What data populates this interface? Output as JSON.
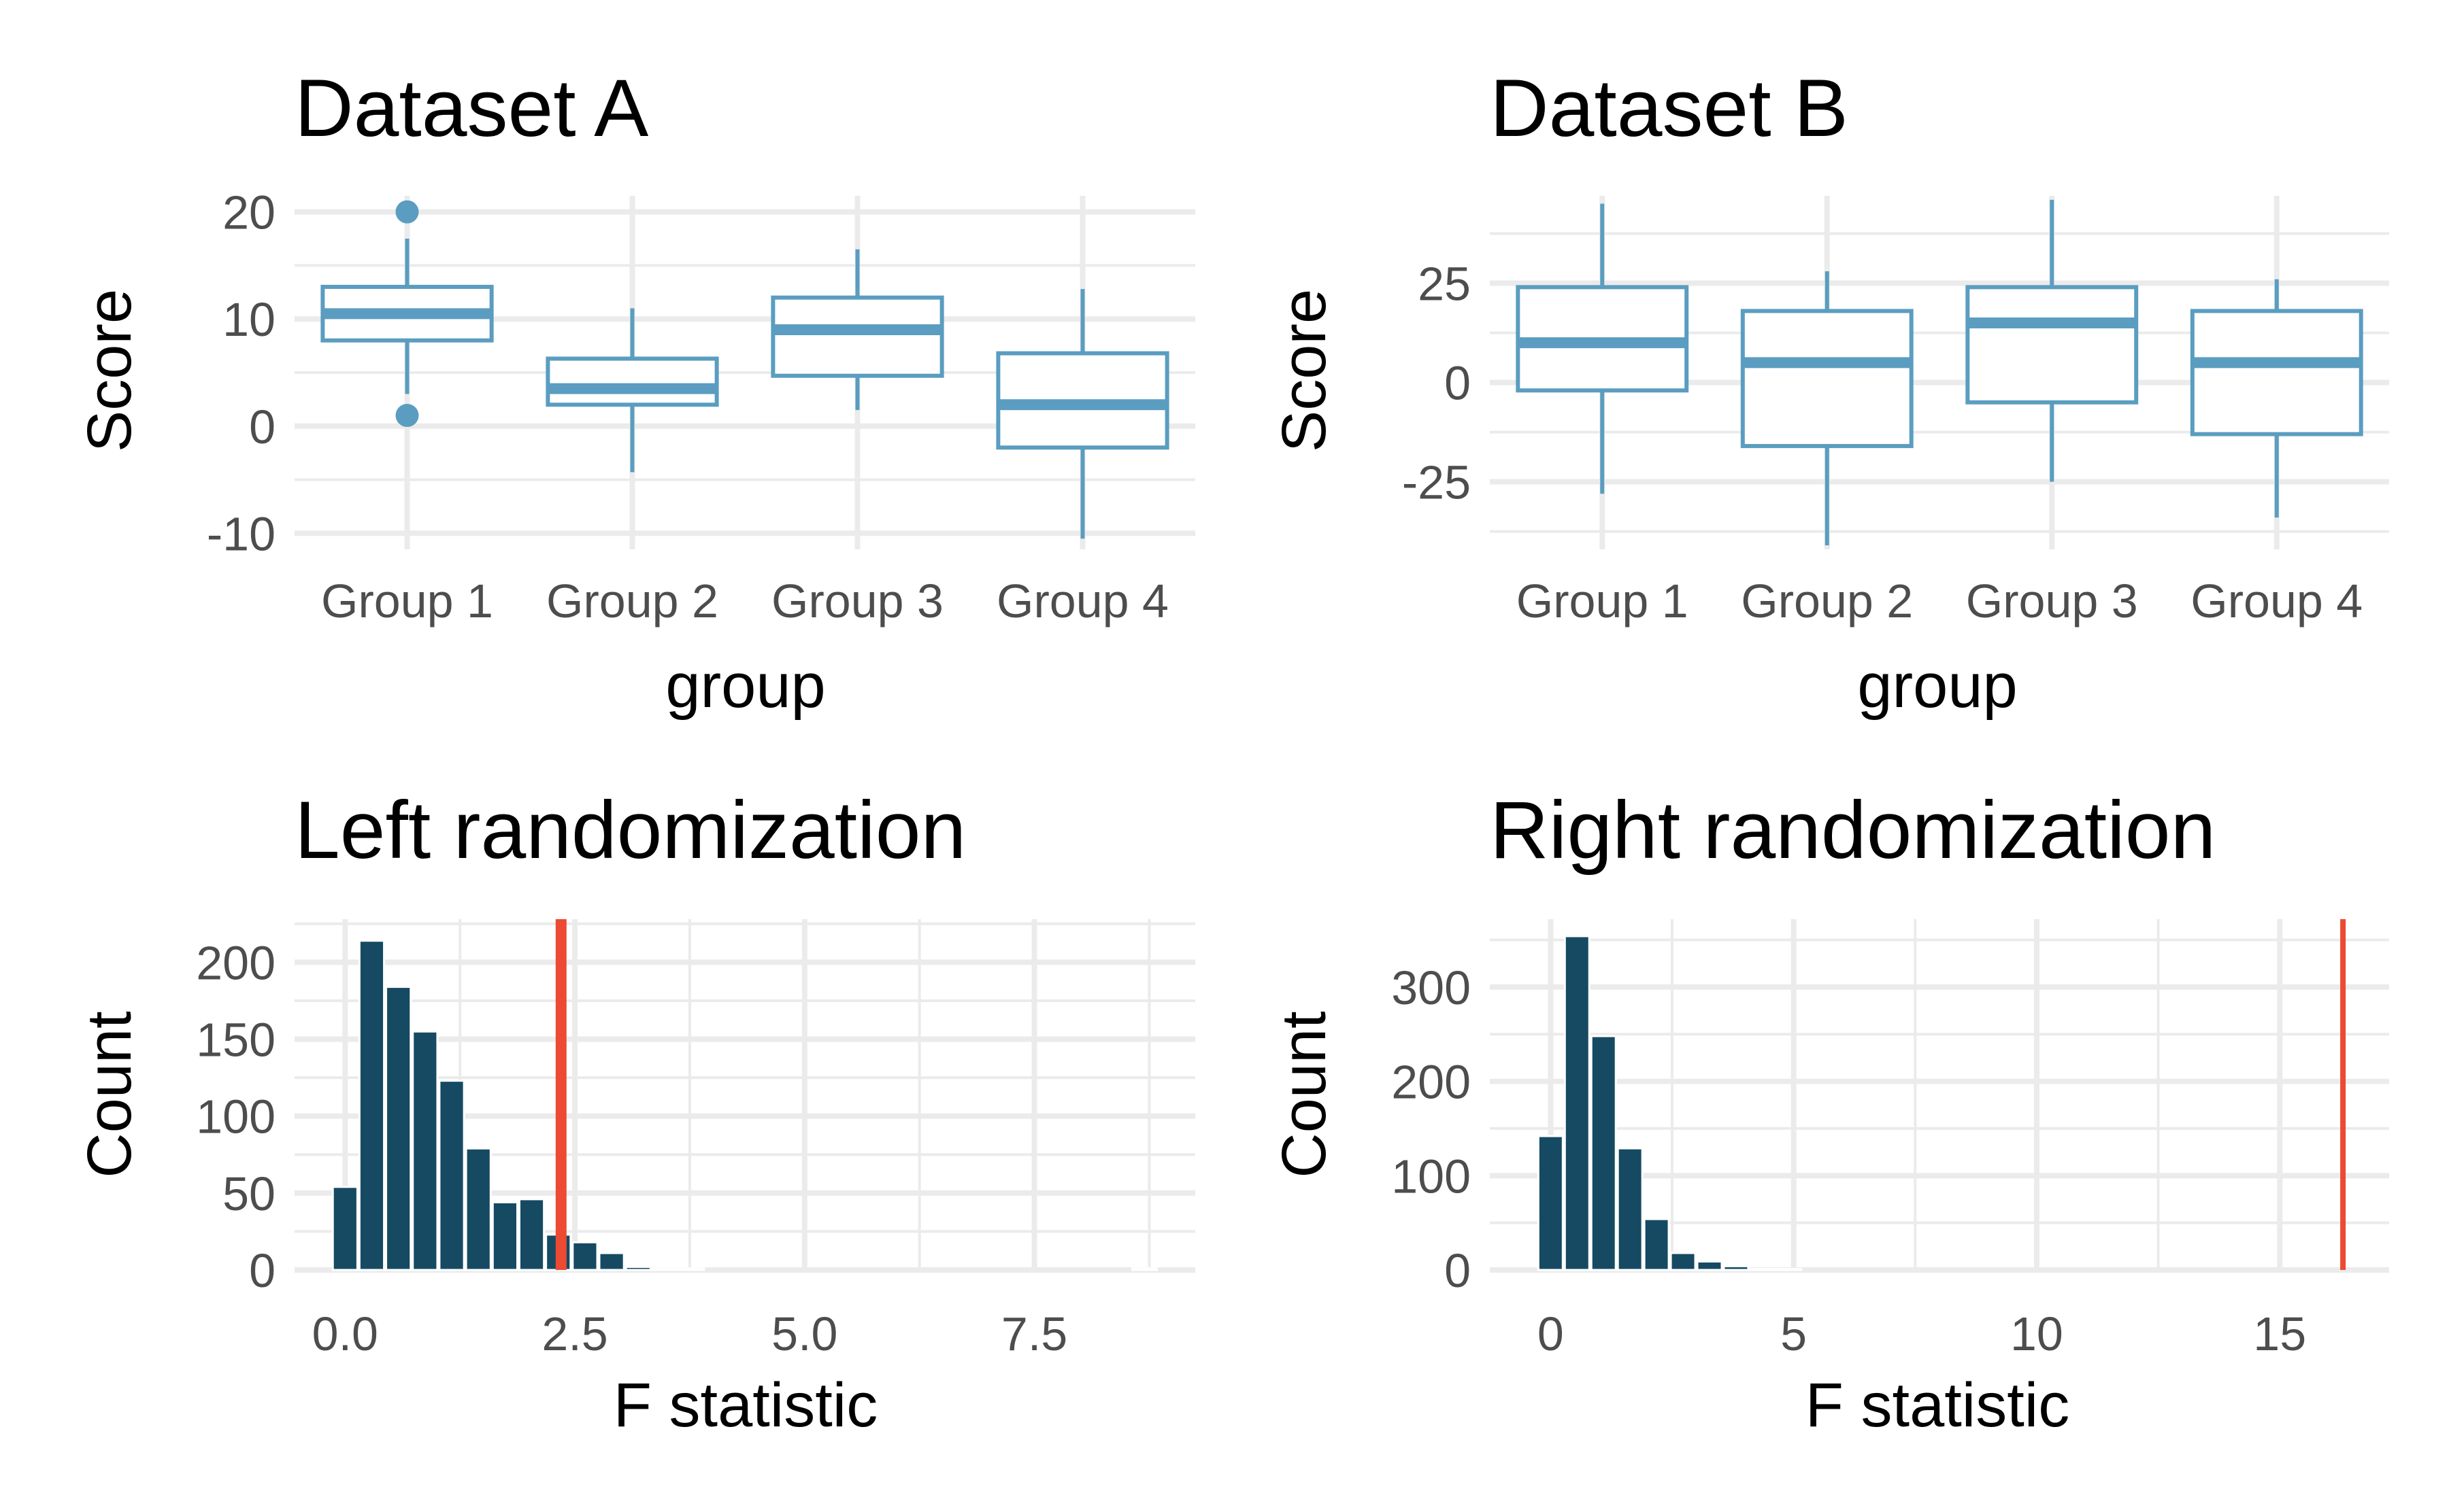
{
  "colors": {
    "box": "#5a9dc0",
    "bar": "#154a62",
    "observed_line": "#ec4a32",
    "grid": "#ebebeb",
    "tick_text": "#4d4d4d"
  },
  "chart_data": [
    {
      "type": "box",
      "title": "Dataset A",
      "xlabel": "group",
      "ylabel": "Score",
      "categories": [
        "Group 1",
        "Group 2",
        "Group 3",
        "Group 4"
      ],
      "yticks": [
        -10,
        0,
        10,
        20
      ],
      "ytick_labels": [
        "-10",
        "0",
        "10",
        "20"
      ],
      "ylim": [
        -11.5,
        21.5
      ],
      "boxes": [
        {
          "lower_whisker": 3,
          "q1": 8,
          "median": 10.5,
          "q3": 13,
          "upper_whisker": 17.5,
          "outliers": [
            20,
            1
          ]
        },
        {
          "lower_whisker": -4.3,
          "q1": 2,
          "median": 3.5,
          "q3": 6.3,
          "upper_whisker": 11,
          "outliers": []
        },
        {
          "lower_whisker": 1.5,
          "q1": 4.7,
          "median": 9,
          "q3": 12,
          "upper_whisker": 16.5,
          "outliers": []
        },
        {
          "lower_whisker": -10.5,
          "q1": -2,
          "median": 2,
          "q3": 6.8,
          "upper_whisker": 12.8,
          "outliers": []
        }
      ]
    },
    {
      "type": "box",
      "title": "Dataset B",
      "xlabel": "group",
      "ylabel": "Score",
      "categories": [
        "Group 1",
        "Group 2",
        "Group 3",
        "Group 4"
      ],
      "yticks": [
        -25,
        0,
        25
      ],
      "ytick_labels": [
        "-25",
        "0",
        "25"
      ],
      "ylim": [
        -42,
        47
      ],
      "boxes": [
        {
          "lower_whisker": -28,
          "q1": -2,
          "median": 10,
          "q3": 24,
          "upper_whisker": 45,
          "outliers": []
        },
        {
          "lower_whisker": -41,
          "q1": -16,
          "median": 5,
          "q3": 18,
          "upper_whisker": 28,
          "outliers": []
        },
        {
          "lower_whisker": -25,
          "q1": -5,
          "median": 15,
          "q3": 24,
          "upper_whisker": 46,
          "outliers": []
        },
        {
          "lower_whisker": -34,
          "q1": -13,
          "median": 5,
          "q3": 18,
          "upper_whisker": 26,
          "outliers": []
        }
      ]
    },
    {
      "type": "bar",
      "title": "Left randomization",
      "xlabel": "F statistic",
      "ylabel": "Count",
      "xticks": [
        0,
        2.5,
        5,
        7.5
      ],
      "xtick_labels": [
        "0.0",
        "2.5",
        "5.0",
        "7.5"
      ],
      "yticks": [
        0,
        50,
        100,
        150,
        200
      ],
      "ytick_labels": [
        "0",
        "50",
        "100",
        "150",
        "200"
      ],
      "xlim": [
        -0.55,
        9.25
      ],
      "ylim": [
        0,
        228
      ],
      "bin_width": 0.29,
      "bin_centers": [
        0,
        0.29,
        0.58,
        0.87,
        1.16,
        1.45,
        1.74,
        2.03,
        2.32,
        2.61,
        2.9,
        3.19,
        3.48,
        3.77,
        4.06,
        4.35,
        4.64,
        4.93,
        5.22,
        5.51,
        5.8,
        6.09,
        6.38,
        6.67,
        6.96,
        7.25,
        7.54,
        7.83,
        8.12,
        8.41,
        8.7
      ],
      "counts": [
        54,
        214,
        184,
        155,
        123,
        79,
        44,
        46,
        23,
        18,
        11,
        2,
        1,
        1,
        0,
        0,
        0,
        0,
        0,
        0,
        0,
        0,
        0,
        0,
        0,
        0,
        0,
        0,
        0,
        0,
        1
      ],
      "observed_f": 2.35
    },
    {
      "type": "bar",
      "title": "Right randomization",
      "xlabel": "F statistic",
      "ylabel": "Count",
      "xticks": [
        0,
        5,
        10,
        15
      ],
      "xtick_labels": [
        "0",
        "5",
        "10",
        "15"
      ],
      "yticks": [
        0,
        100,
        200,
        300
      ],
      "ytick_labels": [
        "0",
        "100",
        "200",
        "300"
      ],
      "xlim": [
        -1.25,
        17.25
      ],
      "ylim": [
        0,
        372
      ],
      "bin_width": 0.545,
      "bin_centers": [
        0,
        0.545,
        1.09,
        1.635,
        2.18,
        2.725,
        3.27,
        3.815,
        4.36,
        4.905
      ],
      "counts": [
        142,
        354,
        248,
        129,
        54,
        18,
        9,
        4,
        1,
        1
      ],
      "observed_f": 16.3
    }
  ]
}
